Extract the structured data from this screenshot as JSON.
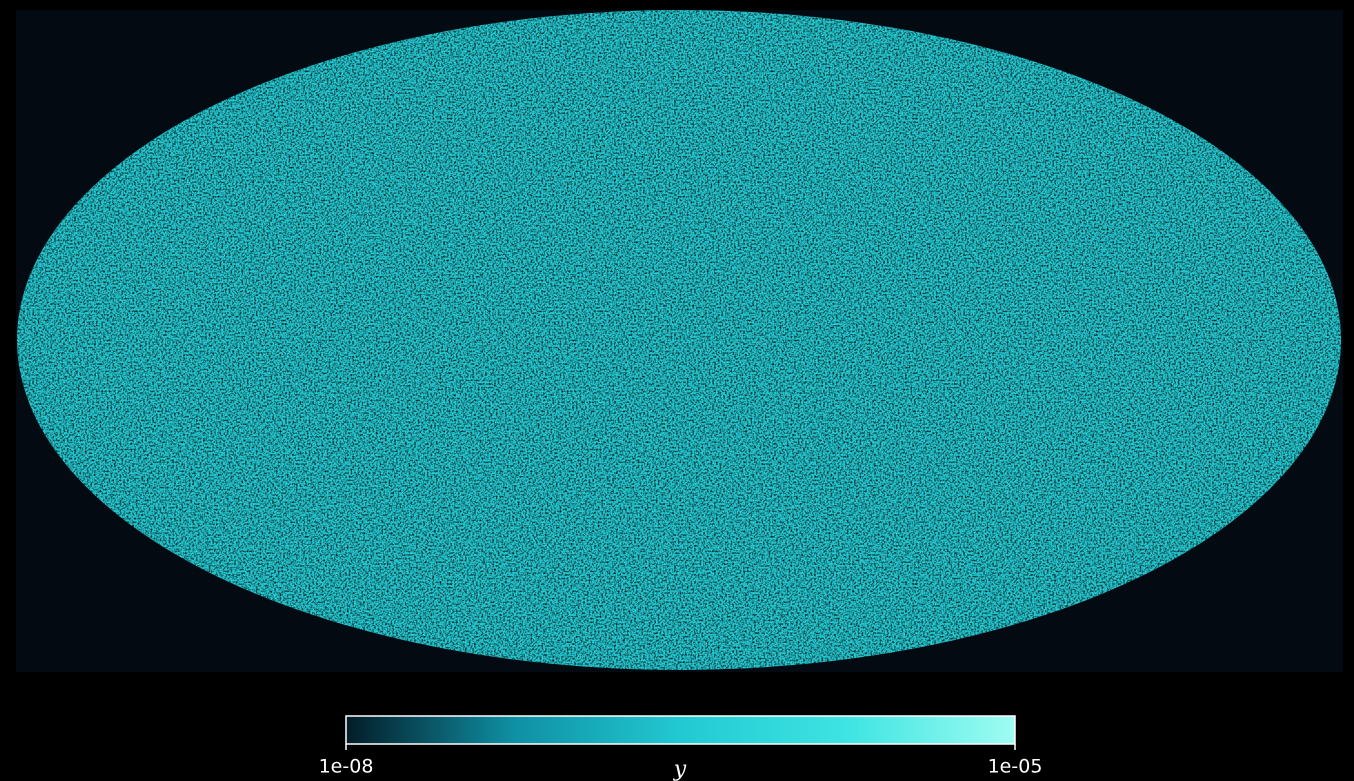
{
  "chart_data": {
    "type": "map",
    "projection": "mollweide",
    "colorbar_label": "y",
    "scale": "log",
    "clim": [
      1e-08,
      1e-05
    ],
    "cticks": [
      {
        "value": 1e-08,
        "label": "1e-08"
      },
      {
        "value": 1e-05,
        "label": "1e-05"
      }
    ],
    "colormap": [
      "#041c28",
      "#0f8fa3",
      "#22c9d2",
      "#3ee4e2",
      "#9ffcf1"
    ]
  }
}
